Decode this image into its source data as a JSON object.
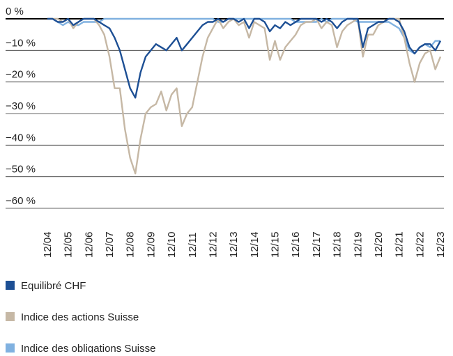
{
  "chart_data": {
    "type": "line",
    "categories": [
      "12/04",
      null,
      null,
      null,
      "12/05",
      null,
      null,
      null,
      "12/06",
      null,
      null,
      null,
      "12/07",
      null,
      null,
      null,
      "12/08",
      null,
      null,
      null,
      "12/09",
      null,
      null,
      null,
      "12/10",
      null,
      null,
      null,
      "12/11",
      null,
      null,
      null,
      "12/12",
      null,
      null,
      null,
      "12/13",
      null,
      null,
      null,
      "12/14",
      null,
      null,
      null,
      "12/15",
      null,
      null,
      null,
      "12/16",
      null,
      null,
      null,
      "12/17",
      null,
      null,
      null,
      "12/18",
      null,
      null,
      null,
      "12/19",
      null,
      null,
      null,
      "12/20",
      null,
      null,
      null,
      "12/21",
      null,
      null,
      null,
      "12/22",
      null,
      null,
      null,
      "12/23"
    ],
    "series": [
      {
        "name": "Equilibré CHF",
        "color": "#1d4f94",
        "values": [
          0,
          0,
          -1,
          -1,
          0,
          -2,
          -1,
          0,
          0,
          0,
          -1,
          -2,
          -3,
          -6,
          -10,
          -16,
          -22,
          -25,
          -17,
          -12,
          -10,
          -8,
          -9,
          -10,
          -8,
          -6,
          -10,
          -8,
          -6,
          -4,
          -2,
          -1,
          -1,
          0,
          -1,
          0,
          0,
          -1,
          0,
          -3,
          0,
          0,
          -1,
          -4,
          -2,
          -3,
          -1,
          -2,
          -1,
          0,
          0,
          0,
          0,
          -1,
          0,
          -1,
          -3,
          -1,
          0,
          0,
          0,
          -9,
          -3,
          -2,
          -1,
          -1,
          0,
          0,
          -1,
          -4,
          -9,
          -11,
          -9,
          -8,
          -8,
          -10,
          -7
        ]
      },
      {
        "name": "Indice des actions Suisse",
        "color": "#c6b8a5",
        "values": [
          0,
          0,
          0,
          -1,
          0,
          -3,
          -1,
          0,
          0,
          0,
          -2,
          -5,
          -12,
          -22,
          -22,
          -35,
          -44,
          -49,
          -38,
          -30,
          -28,
          -27,
          -23,
          -29,
          -24,
          -22,
          -34,
          -30,
          -28,
          -20,
          -12,
          -6,
          -3,
          0,
          -3,
          -1,
          0,
          -2,
          -1,
          -6,
          -1,
          -2,
          -3,
          -13,
          -7,
          -13,
          -9,
          -7,
          -5,
          -2,
          -1,
          -1,
          0,
          -3,
          -1,
          -2,
          -9,
          -4,
          -2,
          -1,
          0,
          -12,
          -5,
          -5,
          -2,
          -1,
          0,
          0,
          0,
          -6,
          -14,
          -20,
          -14,
          -11,
          -10,
          -16,
          -12
        ]
      },
      {
        "name": "Indice des obligations Suisse",
        "color": "#80b1e0",
        "values": [
          0,
          0,
          -1,
          -2,
          -1,
          -2,
          -2,
          -1,
          -1,
          -1,
          -1,
          0,
          0,
          0,
          0,
          0,
          0,
          0,
          0,
          0,
          0,
          0,
          0,
          0,
          0,
          0,
          0,
          0,
          0,
          0,
          0,
          0,
          0,
          -1,
          -1,
          0,
          0,
          0,
          0,
          0,
          0,
          0,
          0,
          0,
          0,
          0,
          0,
          0,
          -1,
          -1,
          -1,
          -1,
          -1,
          0,
          -1,
          0,
          0,
          0,
          0,
          0,
          -1,
          -1,
          -1,
          -1,
          -1,
          -1,
          -1,
          -2,
          -3,
          -6,
          -10,
          -11,
          -9,
          -8,
          -9,
          -7,
          -7
        ]
      }
    ],
    "ylim": [
      -60,
      0
    ],
    "yticks": [
      {
        "value": 0,
        "label": "0 %"
      },
      {
        "value": -10,
        "label": "−10 %"
      },
      {
        "value": -20,
        "label": "−20 %"
      },
      {
        "value": -30,
        "label": "−30 %"
      },
      {
        "value": -40,
        "label": "−40 %"
      },
      {
        "value": -50,
        "label": "−50 %"
      },
      {
        "value": -60,
        "label": "−60 %"
      }
    ],
    "grid": true
  }
}
